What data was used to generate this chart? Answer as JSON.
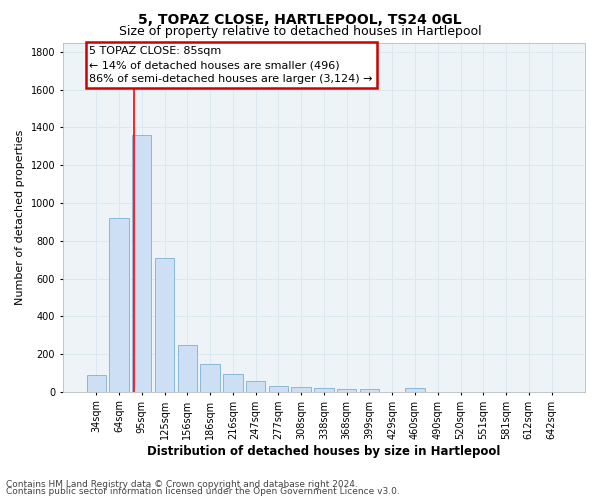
{
  "title": "5, TOPAZ CLOSE, HARTLEPOOL, TS24 0GL",
  "subtitle": "Size of property relative to detached houses in Hartlepool",
  "xlabel": "Distribution of detached houses by size in Hartlepool",
  "ylabel": "Number of detached properties",
  "categories": [
    "34sqm",
    "64sqm",
    "95sqm",
    "125sqm",
    "156sqm",
    "186sqm",
    "216sqm",
    "247sqm",
    "277sqm",
    "308sqm",
    "338sqm",
    "368sqm",
    "399sqm",
    "429sqm",
    "460sqm",
    "490sqm",
    "520sqm",
    "551sqm",
    "581sqm",
    "612sqm",
    "642sqm"
  ],
  "values": [
    90,
    920,
    1360,
    710,
    250,
    145,
    95,
    55,
    30,
    25,
    20,
    15,
    15,
    0,
    20,
    0,
    0,
    0,
    0,
    0,
    0
  ],
  "bar_color": "#ccdff5",
  "bar_edge_color": "#7ab0d8",
  "annotation_line1": "5 TOPAZ CLOSE: 85sqm",
  "annotation_line2": "← 14% of detached houses are smaller (496)",
  "annotation_line3": "86% of semi-detached houses are larger (3,124) →",
  "annotation_box_color": "#ffffff",
  "annotation_box_edge": "#cc0000",
  "grid_color": "#dce8f0",
  "bg_color": "#eef3f8",
  "ylim": [
    0,
    1850
  ],
  "yticks": [
    0,
    200,
    400,
    600,
    800,
    1000,
    1200,
    1400,
    1600,
    1800
  ],
  "footer1": "Contains HM Land Registry data © Crown copyright and database right 2024.",
  "footer2": "Contains public sector information licensed under the Open Government Licence v3.0.",
  "title_fontsize": 10,
  "subtitle_fontsize": 9,
  "xlabel_fontsize": 8.5,
  "ylabel_fontsize": 8,
  "tick_fontsize": 7,
  "footer_fontsize": 6.5,
  "ann_fontsize": 8
}
